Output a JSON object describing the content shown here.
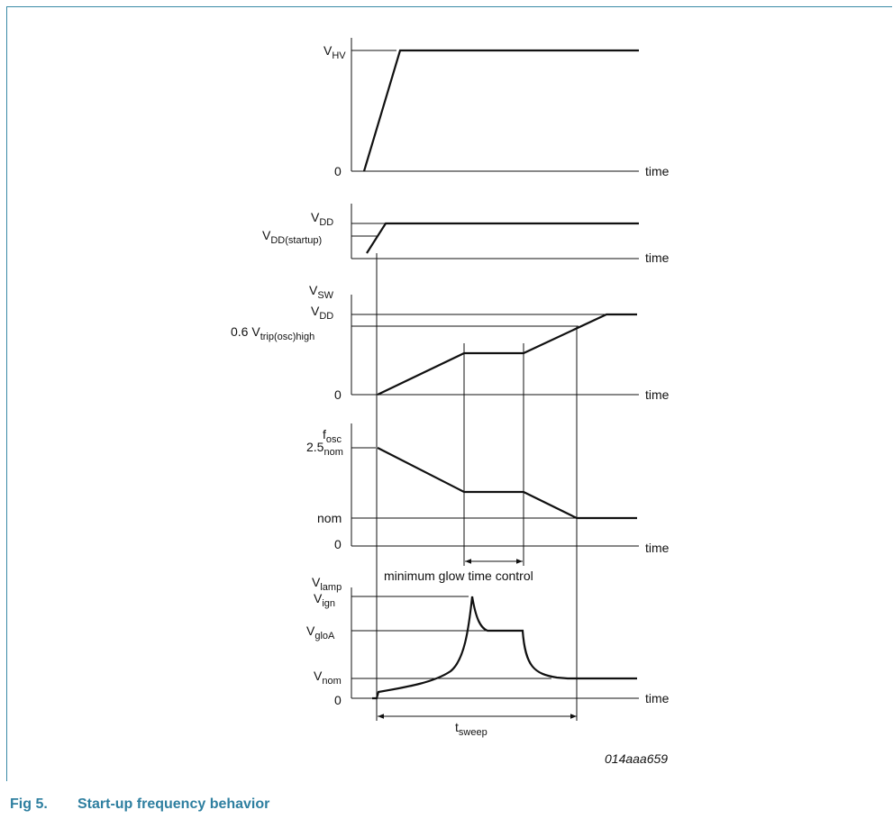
{
  "figure": {
    "number": "Fig 5.",
    "title": "Start-up frequency behavior",
    "code": "014aaa659"
  },
  "time_label": "time",
  "panel1": {
    "top": {
      "main": "V",
      "sub": "HV"
    },
    "zero": "0"
  },
  "panel2": {
    "top": {
      "main": "V",
      "sub": "DD"
    },
    "startup": {
      "main": "V",
      "sub": "DD(startup)"
    }
  },
  "panel3": {
    "axis": {
      "main": "V",
      "sub": "SW"
    },
    "vdd": {
      "main": "V",
      "sub": "DD"
    },
    "trip": {
      "prefix": "0.6 V",
      "sub": "trip(osc)high"
    },
    "zero": "0"
  },
  "panel4": {
    "axis": {
      "main": "f",
      "sub": "osc"
    },
    "max": {
      "main": "2.5",
      "sub": "nom"
    },
    "nom": "nom",
    "zero": "0"
  },
  "annotation": "minimum glow time control",
  "panel5": {
    "axis": {
      "main": "V",
      "sub": "lamp"
    },
    "ign": {
      "main": "V",
      "sub": "ign"
    },
    "glo": {
      "main": "V",
      "sub": "gloA"
    },
    "nom": {
      "main": "V",
      "sub": "nom"
    },
    "zero": "0"
  },
  "sweep": {
    "main": "t",
    "sub": "sweep"
  },
  "colors": {
    "frame": "#3a8aa6",
    "caption": "#2e7fa0",
    "trace": "#111111"
  }
}
